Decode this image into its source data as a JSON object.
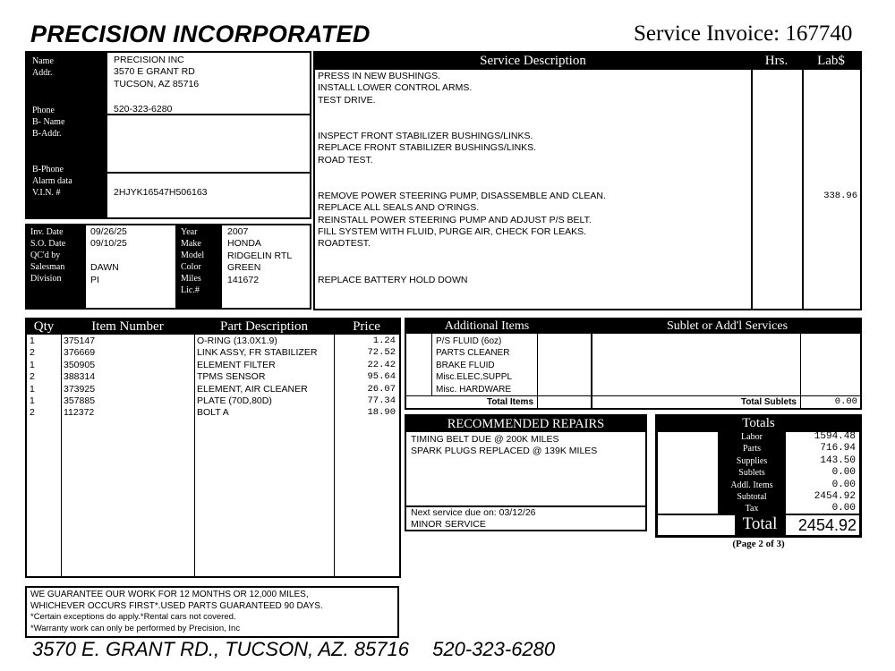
{
  "header": {
    "company": "PRECISION INCORPORATED",
    "invoice_label": "Service Invoice: 167740"
  },
  "customer": {
    "labels": {
      "name": "Name",
      "addr": "Addr.",
      "phone": "Phone",
      "b_name": "B- Name",
      "b_addr": "B-Addr.",
      "b_phone": "B-Phone",
      "alarm": "Alarm data",
      "vin": "V.I.N. #"
    },
    "name": "PRECISION INC",
    "addr1": "3570 E GRANT RD",
    "addr2": "TUCSON, AZ 85716",
    "phone": "520-323-6280",
    "vin": "2HJYK16547H506163"
  },
  "order": {
    "labels": {
      "inv_date": "Inv. Date",
      "so_date": "S.O. Date",
      "qc": "QC'd by",
      "salesman": "Salesman",
      "division": "Division",
      "year": "Year",
      "make": "Make",
      "model": "Model",
      "color": "Color",
      "miles": "Miles",
      "lic": "Lic.#"
    },
    "inv_date": "09/26/25",
    "so_date": "09/10/25",
    "salesman": "DAWN",
    "division": "PI",
    "year": "2007",
    "make": "HONDA",
    "model": "RIDGELIN RTL",
    "color": "GREEN",
    "miles": "141672"
  },
  "service": {
    "headers": {
      "desc": "Service Description",
      "hrs": "Hrs.",
      "lab": "Lab$"
    },
    "lines": [
      "PRESS IN NEW BUSHINGS.",
      "INSTALL LOWER CONTROL ARMS.",
      "TEST DRIVE.",
      "",
      "",
      "INSPECT FRONT STABILIZER BUSHINGS/LINKS.",
      "REPLACE FRONT STABILIZER BUSHINGS/LINKS.",
      "ROAD TEST.",
      "",
      "",
      "REMOVE POWER STEERING PUMP, DISASSEMBLE AND CLEAN.",
      "REPLACE ALL SEALS AND O'RINGS.",
      "REINSTALL POWER STEERING PUMP AND ADJUST P/S BELT.",
      "FILL SYSTEM WITH FLUID, PURGE AIR, CHECK FOR LEAKS.",
      "ROADTEST.",
      "",
      "",
      "REPLACE BATTERY HOLD DOWN"
    ],
    "lab_values": [
      "",
      "",
      "",
      "",
      "",
      "",
      "",
      "",
      "",
      "",
      "338.96",
      "",
      "",
      "",
      "",
      "",
      "",
      ""
    ]
  },
  "parts": {
    "headers": {
      "qty": "Qty",
      "item": "Item Number",
      "desc": "Part Description",
      "price": "Price"
    },
    "rows": [
      {
        "qty": "1",
        "item": "375147",
        "desc": "O-RING (13.0X1.9)",
        "price": "1.24"
      },
      {
        "qty": "2",
        "item": "376669",
        "desc": "LINK ASSY, FR STABILIZER",
        "price": "72.52"
      },
      {
        "qty": "1",
        "item": "350905",
        "desc": "ELEMENT FILTER",
        "price": "22.42"
      },
      {
        "qty": "2",
        "item": "388314",
        "desc": "TPMS SENSOR",
        "price": "95.64"
      },
      {
        "qty": "1",
        "item": "373925",
        "desc": "ELEMENT, AIR CLEANER",
        "price": "26.07"
      },
      {
        "qty": "1",
        "item": "357885",
        "desc": "PLATE (70D,80D)",
        "price": "77.34"
      },
      {
        "qty": "2",
        "item": "112372",
        "desc": "BOLT A",
        "price": "18.90"
      }
    ]
  },
  "additional": {
    "header": "Additional Items",
    "items": [
      "P/S FLUID (6oz)",
      "PARTS CLEANER",
      "BRAKE FLUID",
      "Misc.ELEC,SUPPL",
      "Misc. HARDWARE"
    ],
    "total_label": "Total Items"
  },
  "sublet": {
    "header": "Sublet or Add'l Services",
    "total_label": "Total Sublets",
    "total": "0.00"
  },
  "recommended": {
    "header": "RECOMMENDED REPAIRS",
    "lines": [
      "TIMING BELT DUE @ 200K MILES",
      "SPARK PLUGS REPLACED @ 139K MILES"
    ],
    "next_service": "Next service due on: 03/12/26",
    "next_type": "MINOR SERVICE"
  },
  "totals": {
    "header": "Totals",
    "rows": [
      {
        "label": "Labor",
        "value": "1594.48"
      },
      {
        "label": "Parts",
        "value": "716.94"
      },
      {
        "label": "Supplies",
        "value": "143.50"
      },
      {
        "label": "Sublets",
        "value": "0.00"
      },
      {
        "label": "Addl. Items",
        "value": "0.00"
      },
      {
        "label": "Subtotal",
        "value": "2454.92"
      },
      {
        "label": "Tax",
        "value": "0.00"
      }
    ],
    "total_label": "Total",
    "total": "2454.92"
  },
  "page": "(Page 2 of 3)",
  "warranty": [
    "WE GUARANTEE OUR WORK FOR 12 MONTHS OR 12,000 MILES,",
    "WHICHEVER OCCURS FIRST*.USED PARTS GUARANTEED 90 DAYS.",
    "*Certain exceptions do apply.*Rental cars not covered.",
    "*Warranty work can only be performed by Precision, Inc"
  ],
  "footer": {
    "address": "3570 E. GRANT RD., TUCSON, AZ. 85716",
    "phone": "520-323-6280"
  }
}
